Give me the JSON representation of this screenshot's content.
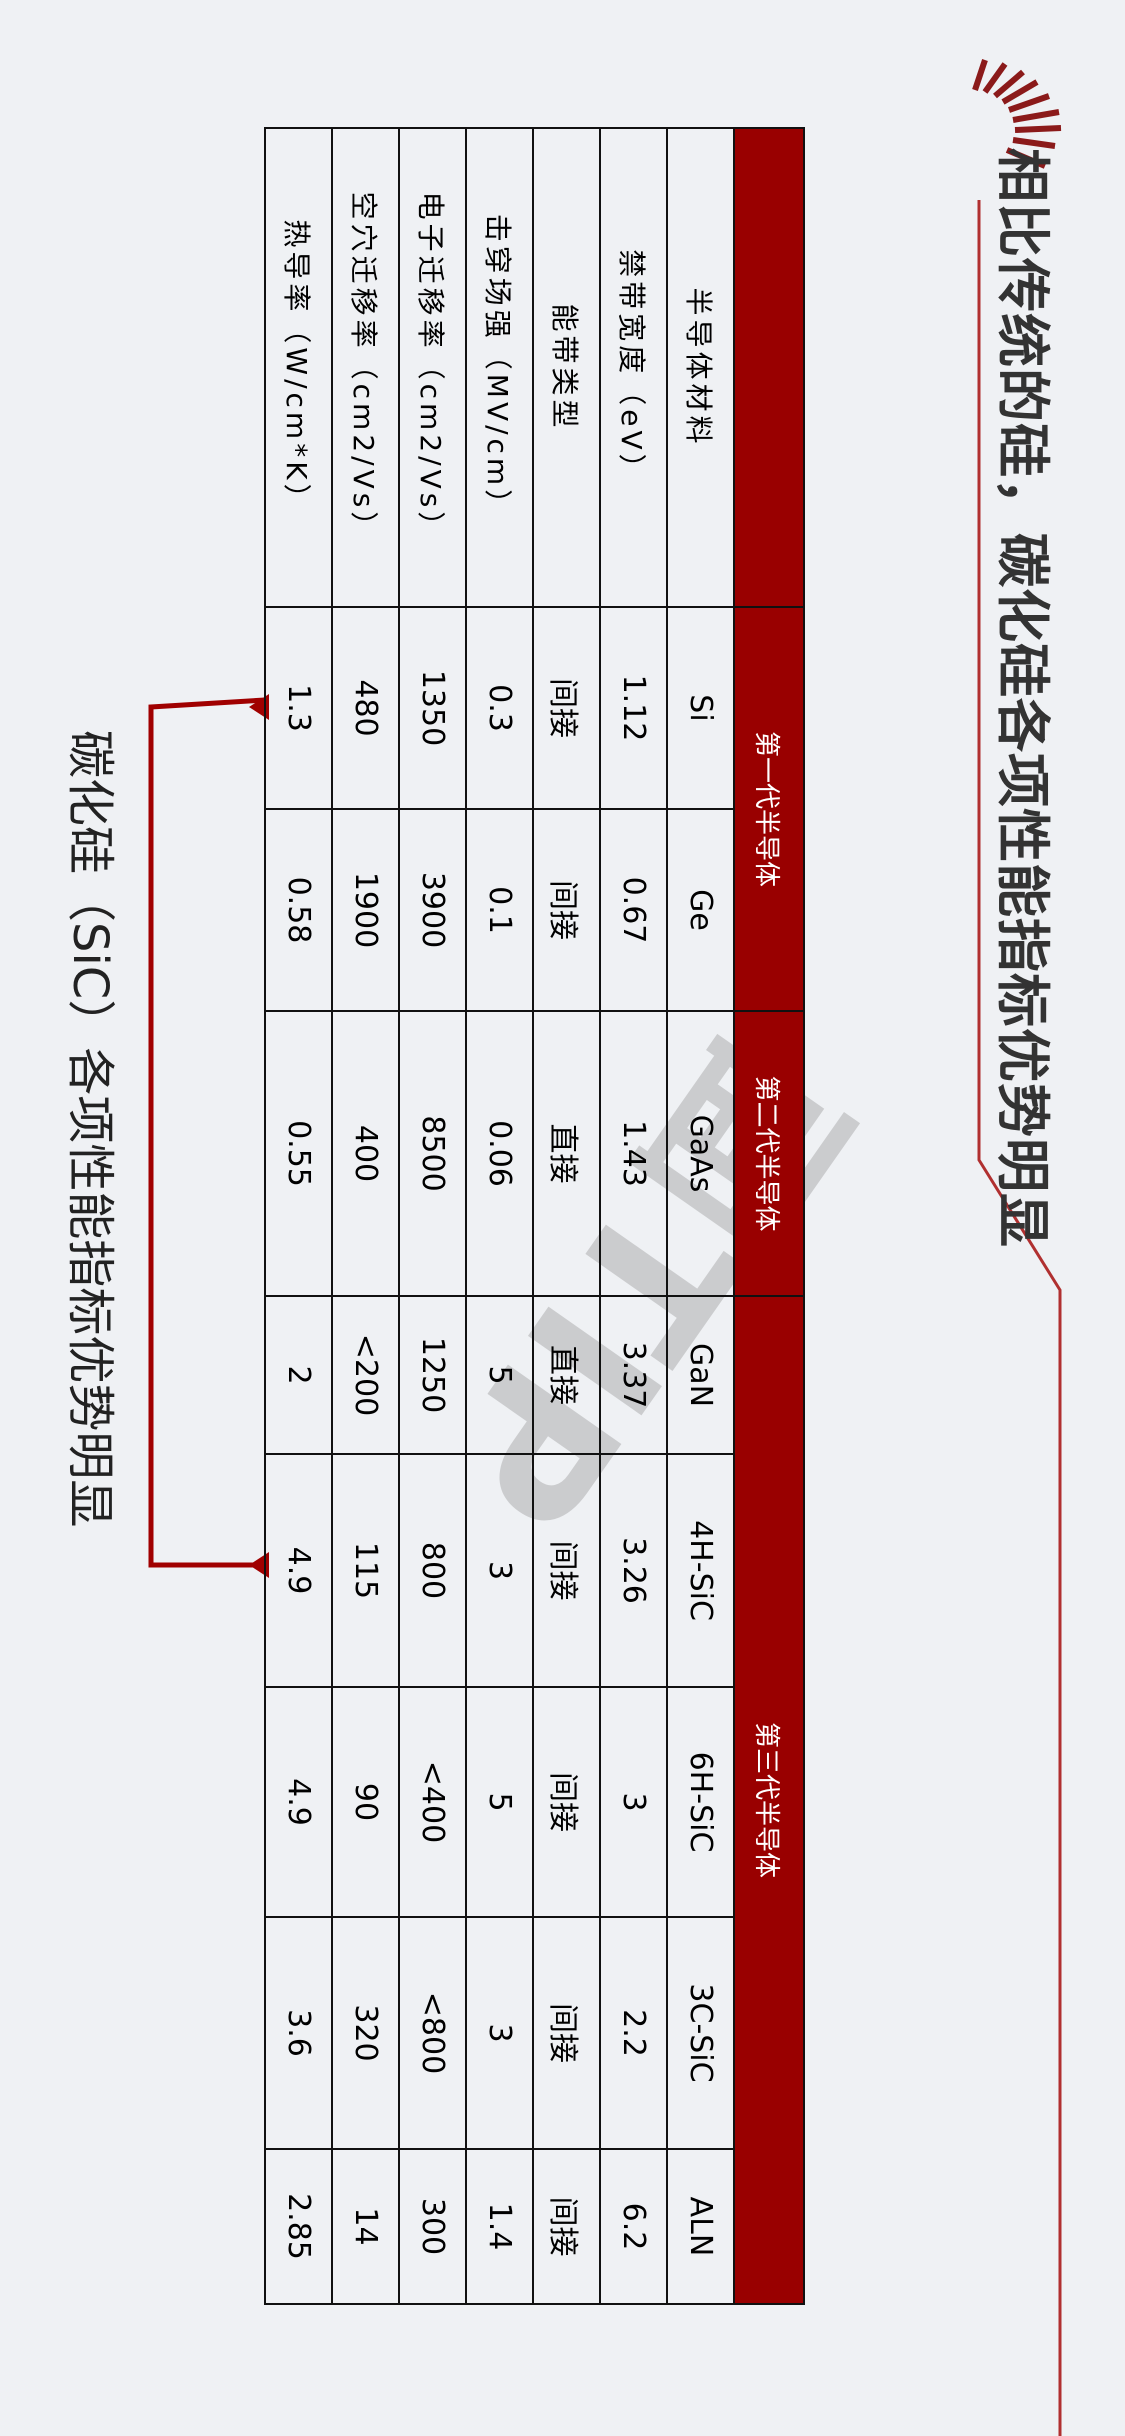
{
  "title": "相比传统的硅，碳化硅各项性能指标优势明显",
  "caption": "碳化硅（SiC）各项性能指标优势明显",
  "watermark": "面TIP",
  "colors": {
    "accent": "#990000",
    "background": "#eff1f4",
    "arrow": "#a00000"
  },
  "table": {
    "groups": [
      "第一代半导体",
      "第二代半导体",
      "第三代半导体"
    ],
    "columns": [
      "半导体材料",
      "Si",
      "Ge",
      "GaAs",
      "GaN",
      "4H-SiC",
      "6H-SiC",
      "3C-SiC",
      "ALN"
    ],
    "rows": [
      {
        "label": "禁带宽度（eV）",
        "values": [
          "1.12",
          "0.67",
          "1.43",
          "3.37",
          "3.26",
          "3",
          "2.2",
          "6.2"
        ]
      },
      {
        "label": "能带类型",
        "values": [
          "间接",
          "间接",
          "直接",
          "直接",
          "间接",
          "间接",
          "间接",
          "间接"
        ]
      },
      {
        "label": "击穿场强（MV/cm）",
        "values": [
          "0.3",
          "0.1",
          "0.06",
          "5",
          "3",
          "5",
          "3",
          "1.4"
        ]
      },
      {
        "label": "电子迁移率（cm2/Vs）",
        "values": [
          "1350",
          "3900",
          "8500",
          "1250",
          "800",
          "<400",
          "<800",
          "300"
        ]
      },
      {
        "label": "空穴迁移率（cm2/Vs）",
        "values": [
          "480",
          "1900",
          "400",
          "<200",
          "115",
          "90",
          "320",
          "14"
        ]
      },
      {
        "label": "热导率（W/cm*K）",
        "values": [
          "1.3",
          "0.58",
          "0.55",
          "2",
          "4.9",
          "4.9",
          "3.6",
          "2.85"
        ]
      }
    ]
  }
}
